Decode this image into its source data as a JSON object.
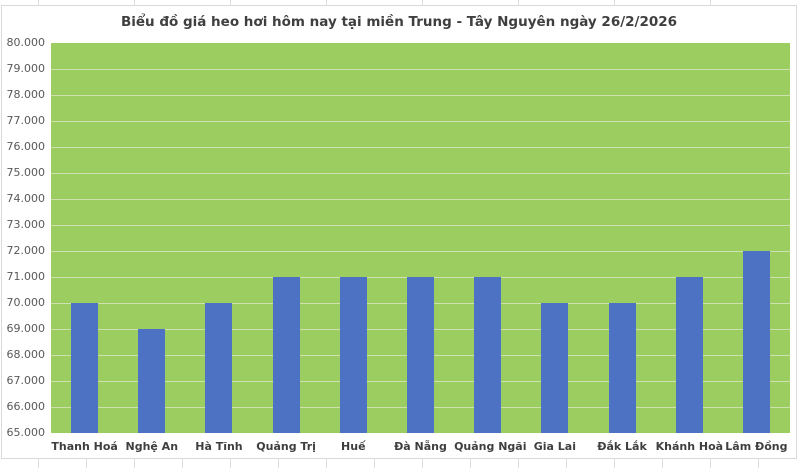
{
  "chart_data": {
    "type": "bar",
    "title": "Biểu đồ giá heo hơi hôm nay tại miền Trung - Tây Nguyên ngày 26/2/2026",
    "categories": [
      "Thanh Hoá",
      "Nghệ An",
      "Hà Tĩnh",
      "Quảng Trị",
      "Huế",
      "Đà Nẵng",
      "Quảng Ngãi",
      "Gia Lai",
      "Đắk Lắk",
      "Khánh Hoà",
      "Lâm Đồng"
    ],
    "values": [
      70000,
      69000,
      70000,
      71000,
      71000,
      71000,
      71000,
      70000,
      70000,
      71000,
      72000
    ],
    "xlabel": "",
    "ylabel": "",
    "ylim": [
      65000,
      80000
    ],
    "y_tick_step": 1000,
    "y_tick_labels": [
      "65.000",
      "66.000",
      "67.000",
      "68.000",
      "69.000",
      "70.000",
      "71.000",
      "72.000",
      "73.000",
      "74.000",
      "75.000",
      "76.000",
      "77.000",
      "78.000",
      "79.000",
      "80.000"
    ],
    "grid": true,
    "legend": false,
    "colors": {
      "bar": "#4d72c4",
      "plot_bg": "#9bcd61",
      "gridline": "#cfe1ae",
      "title_text": "#3f3f3f",
      "axis_text": "#595959",
      "category_text": "#3f3f3f",
      "chart_border": "#d9d9d9"
    }
  }
}
